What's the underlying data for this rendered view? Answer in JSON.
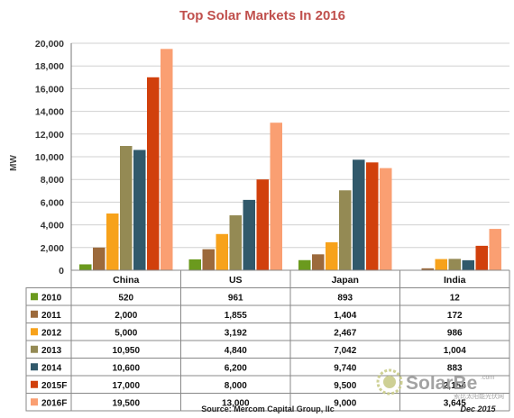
{
  "chart_data": {
    "type": "bar",
    "title": "Top Solar Markets In 2016",
    "ylabel": "MW",
    "ylim": [
      0,
      20000
    ],
    "yticks": [
      "0",
      "2,000",
      "4,000",
      "6,000",
      "8,000",
      "10,000",
      "12,000",
      "14,000",
      "16,000",
      "18,000",
      "20,000"
    ],
    "categories": [
      "China",
      "US",
      "Japan",
      "India"
    ],
    "series": [
      {
        "name": "2010",
        "color": "#6b9a1e",
        "values": [
          520,
          961,
          893,
          12
        ],
        "labels": [
          "520",
          "961",
          "893",
          "12"
        ]
      },
      {
        "name": "2011",
        "color": "#9c6a3c",
        "values": [
          2000,
          1855,
          1404,
          172
        ],
        "labels": [
          "2,000",
          "1,855",
          "1,404",
          "172"
        ]
      },
      {
        "name": "2012",
        "color": "#f7a21b",
        "values": [
          5000,
          3192,
          2467,
          986
        ],
        "labels": [
          "5,000",
          "3,192",
          "2,467",
          "986"
        ]
      },
      {
        "name": "2013",
        "color": "#948a54",
        "values": [
          10950,
          4840,
          7042,
          1004
        ],
        "labels": [
          "10,950",
          "4,840",
          "7,042",
          "1,004"
        ]
      },
      {
        "name": "2014",
        "color": "#31596b",
        "values": [
          10600,
          6200,
          9740,
          883
        ],
        "labels": [
          "10,600",
          "6,200",
          "9,740",
          "883"
        ]
      },
      {
        "name": "2015F",
        "color": "#d1400c",
        "values": [
          17000,
          8000,
          9500,
          2154
        ],
        "labels": [
          "17,000",
          "8,000",
          "9,500",
          "2,154"
        ]
      },
      {
        "name": "2016F",
        "color": "#fa9f72",
        "values": [
          19500,
          13000,
          9000,
          3645
        ],
        "labels": [
          "19,500",
          "13,000",
          "9,000",
          "3,645"
        ]
      }
    ],
    "grid": true,
    "legend": "data-table"
  },
  "footer": {
    "source": "Source: Mercom Capital Group, llc",
    "date": "Dec 2015"
  },
  "watermark": {
    "brand": "SolarBe",
    "domain": ".com",
    "tagline": "索比太阳能光伏网"
  }
}
